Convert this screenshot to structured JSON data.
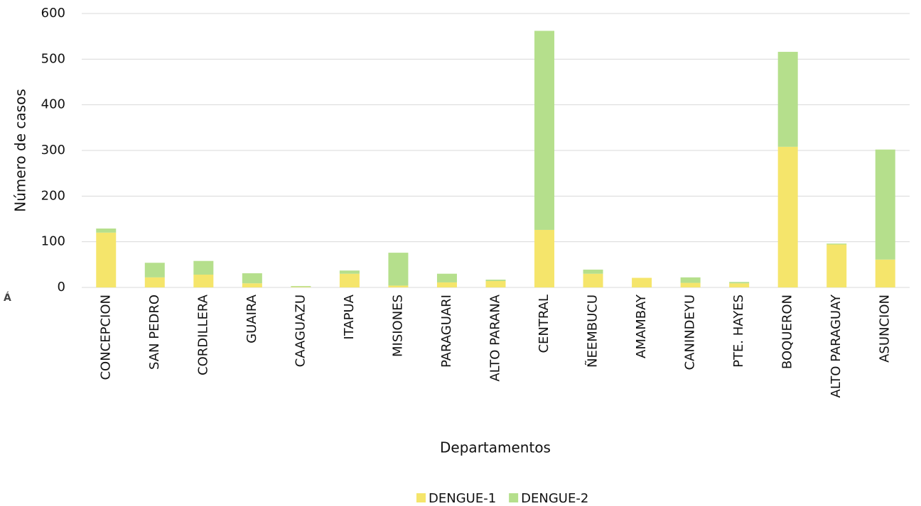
{
  "chart_data": {
    "type": "stacked_bar",
    "categories": [
      "CONCEPCION",
      "SAN PEDRO",
      "CORDILLERA",
      "GUAIRA",
      "CAAGUAZU",
      "ITAPUA",
      "MISIONES",
      "PARAGUARI",
      "ALTO PARANA",
      "CENTRAL",
      "ÑEEMBUCU",
      "AMAMBAY",
      "CANINDEYU",
      "PTE. HAYES",
      "BOQUERON",
      "ALTO PARAGUAY",
      "ASUNCION"
    ],
    "series": [
      {
        "name": "DENGUE-1",
        "color": "#f5e56b",
        "values": [
          120,
          22,
          28,
          9,
          1,
          30,
          4,
          11,
          14,
          126,
          30,
          21,
          10,
          9,
          308,
          94,
          61
        ]
      },
      {
        "name": "DENGUE-2",
        "color": "#b5df8c",
        "values": [
          9,
          32,
          30,
          22,
          2,
          7,
          72,
          19,
          3,
          436,
          9,
          0,
          12,
          3,
          208,
          2,
          241
        ]
      }
    ],
    "ylim": [
      0,
      600
    ],
    "yticks": [
      0,
      100,
      200,
      300,
      400,
      500,
      600
    ],
    "grid": true,
    "x_label": "Departamentos",
    "y_label": "Número de casos",
    "side_text": "Á",
    "legend": "bottom"
  }
}
